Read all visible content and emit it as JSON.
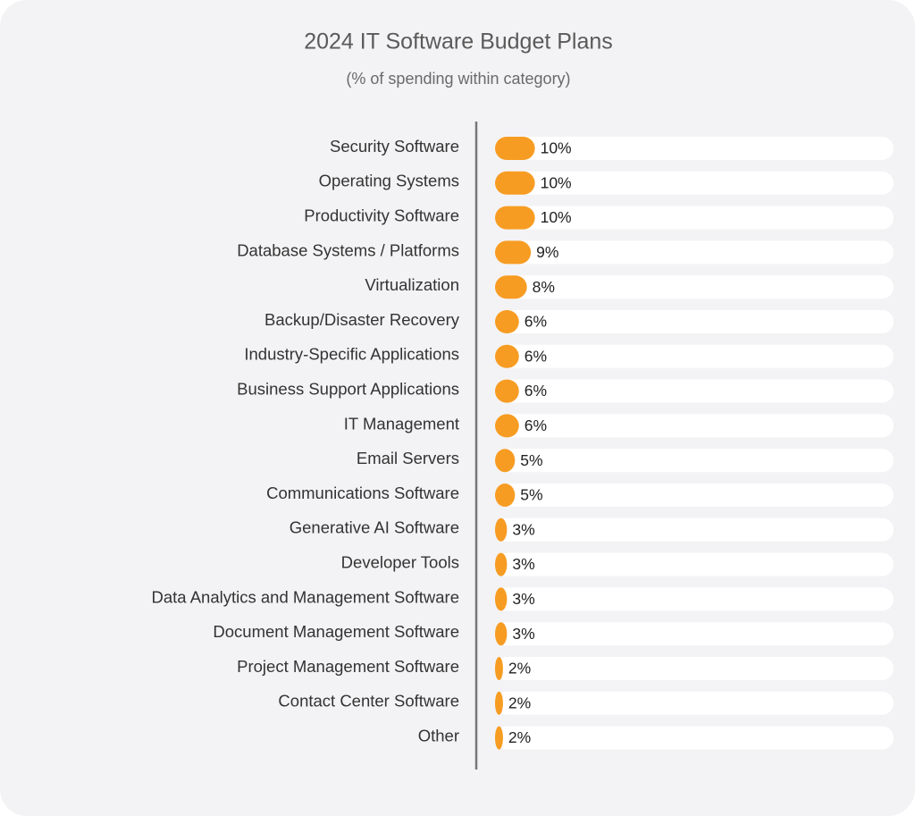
{
  "chart_data": {
    "type": "bar",
    "orientation": "horizontal",
    "title": "2024 IT Software Budget Plans",
    "subtitle": "(% of spending within category)",
    "categories": [
      "Security Software",
      "Operating Systems",
      "Productivity Software",
      "Database Systems / Platforms",
      "Virtualization",
      "Backup/Disaster Recovery",
      "Industry-Specific Applications",
      "Business Support Applications",
      "IT Management",
      "Email Servers",
      "Communications Software",
      "Generative AI Software",
      "Developer Tools",
      "Data Analytics and Management Software",
      "Document Management Software",
      "Project Management Software",
      "Contact Center Software",
      "Other"
    ],
    "values": [
      10,
      10,
      10,
      9,
      8,
      6,
      6,
      6,
      6,
      5,
      5,
      3,
      3,
      3,
      3,
      2,
      2,
      2
    ],
    "value_labels": [
      "10%",
      "10%",
      "10%",
      "9%",
      "8%",
      "6%",
      "6%",
      "6%",
      "6%",
      "5%",
      "5%",
      "3%",
      "3%",
      "3%",
      "3%",
      "2%",
      "2%",
      "2%"
    ],
    "color": "#f79c22",
    "xlim": [
      0,
      100
    ]
  }
}
